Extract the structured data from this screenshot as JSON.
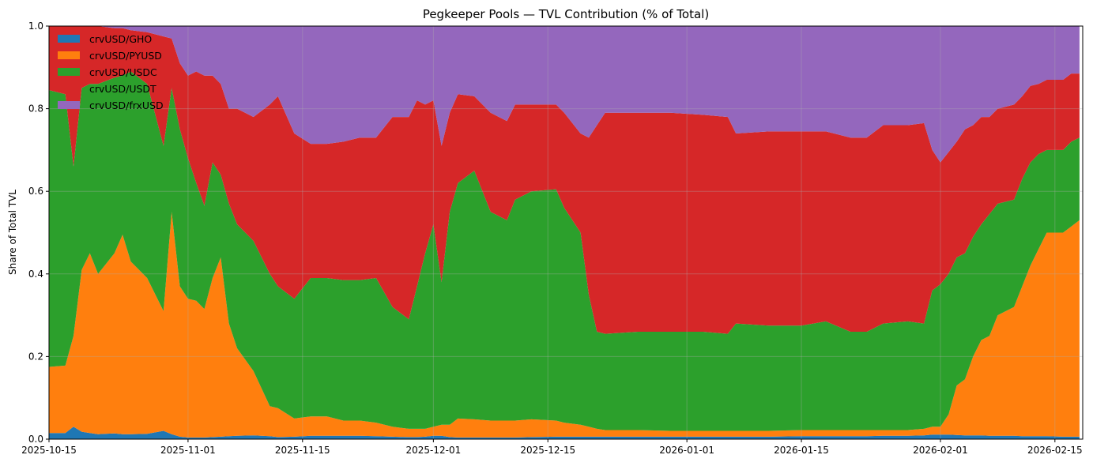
{
  "chart_data": {
    "type": "area",
    "stacked": true,
    "title": "Pegkeeper Pools — TVL Contribution (% of Total)",
    "xlabel": "",
    "ylabel": "Share of Total TVL",
    "xlim": [
      "2025-10-15",
      "2026-02-18"
    ],
    "ylim": [
      0,
      1
    ],
    "yticks": [
      "0.0",
      "0.2",
      "0.4",
      "0.6",
      "0.8",
      "1.0"
    ],
    "xticks": [
      "2025-10-15",
      "2025-11-01",
      "2025-11-15",
      "2025-12-01",
      "2025-12-15",
      "2026-01-01",
      "2026-01-15",
      "2026-02-01",
      "2026-02-15"
    ],
    "grid": true,
    "legend_position": "top-left",
    "x": [
      "2025-10-15",
      "2025-10-17",
      "2025-10-18",
      "2025-10-19",
      "2025-10-20",
      "2025-10-21",
      "2025-10-23",
      "2025-10-24",
      "2025-10-25",
      "2025-10-27",
      "2025-10-29",
      "2025-10-30",
      "2025-10-31",
      "2025-11-01",
      "2025-11-02",
      "2025-11-03",
      "2025-11-04",
      "2025-11-05",
      "2025-11-06",
      "2025-11-07",
      "2025-11-09",
      "2025-11-11",
      "2025-11-12",
      "2025-11-14",
      "2025-11-16",
      "2025-11-18",
      "2025-11-20",
      "2025-11-22",
      "2025-11-24",
      "2025-11-26",
      "2025-11-28",
      "2025-11-29",
      "2025-11-30",
      "2025-12-01",
      "2025-12-02",
      "2025-12-03",
      "2025-12-04",
      "2025-12-06",
      "2025-12-08",
      "2025-12-10",
      "2025-12-11",
      "2025-12-13",
      "2025-12-16",
      "2025-12-17",
      "2025-12-19",
      "2025-12-20",
      "2025-12-21",
      "2025-12-22",
      "2025-12-26",
      "2025-12-30",
      "2026-01-03",
      "2026-01-06",
      "2026-01-07",
      "2026-01-11",
      "2026-01-15",
      "2026-01-18",
      "2026-01-21",
      "2026-01-23",
      "2026-01-25",
      "2026-01-28",
      "2026-01-30",
      "2026-01-31",
      "2026-02-01",
      "2026-02-02",
      "2026-02-03",
      "2026-02-04",
      "2026-02-05",
      "2026-02-06",
      "2026-02-07",
      "2026-02-08",
      "2026-02-10",
      "2026-02-11",
      "2026-02-12",
      "2026-02-13",
      "2026-02-14",
      "2026-02-16",
      "2026-02-17",
      "2026-02-18"
    ],
    "series": [
      {
        "name": "crvUSD/GHO",
        "color": "#1f77b4",
        "values": [
          0.015,
          0.015,
          0.03,
          0.018,
          0.015,
          0.012,
          0.014,
          0.012,
          0.012,
          0.013,
          0.02,
          0.012,
          0.006,
          0.004,
          0.004,
          0.004,
          0.005,
          0.006,
          0.007,
          0.008,
          0.009,
          0.007,
          0.005,
          0.006,
          0.008,
          0.008,
          0.008,
          0.008,
          0.007,
          0.006,
          0.005,
          0.005,
          0.006,
          0.008,
          0.008,
          0.005,
          0.004,
          0.004,
          0.004,
          0.004,
          0.004,
          0.005,
          0.006,
          0.006,
          0.006,
          0.006,
          0.006,
          0.006,
          0.006,
          0.006,
          0.006,
          0.006,
          0.006,
          0.006,
          0.007,
          0.007,
          0.007,
          0.007,
          0.008,
          0.008,
          0.009,
          0.011,
          0.011,
          0.011,
          0.01,
          0.009,
          0.009,
          0.009,
          0.008,
          0.008,
          0.008,
          0.007,
          0.007,
          0.007,
          0.007,
          0.006,
          0.006,
          0.006
        ]
      },
      {
        "name": "crvUSD/PYUSD",
        "color": "#ff7f0e",
        "values": [
          0.16,
          0.163,
          0.22,
          0.392,
          0.435,
          0.388,
          0.436,
          0.483,
          0.418,
          0.377,
          0.29,
          0.538,
          0.364,
          0.336,
          0.331,
          0.311,
          0.385,
          0.434,
          0.273,
          0.212,
          0.156,
          0.073,
          0.07,
          0.044,
          0.047,
          0.047,
          0.037,
          0.037,
          0.033,
          0.024,
          0.02,
          0.02,
          0.019,
          0.022,
          0.027,
          0.03,
          0.046,
          0.044,
          0.041,
          0.041,
          0.041,
          0.043,
          0.039,
          0.034,
          0.029,
          0.024,
          0.019,
          0.016,
          0.016,
          0.014,
          0.014,
          0.014,
          0.014,
          0.014,
          0.015,
          0.015,
          0.015,
          0.015,
          0.014,
          0.014,
          0.016,
          0.019,
          0.019,
          0.049,
          0.12,
          0.136,
          0.191,
          0.231,
          0.242,
          0.292,
          0.312,
          0.363,
          0.413,
          0.453,
          0.493,
          0.494,
          0.509,
          0.524
        ]
      },
      {
        "name": "crvUSD/USDC",
        "color": "#2ca02c",
        "values": [
          0.67,
          0.657,
          0.41,
          0.44,
          0.41,
          0.46,
          0.425,
          0.385,
          0.46,
          0.47,
          0.4,
          0.3,
          0.38,
          0.34,
          0.285,
          0.25,
          0.28,
          0.2,
          0.29,
          0.3,
          0.315,
          0.32,
          0.295,
          0.29,
          0.335,
          0.335,
          0.34,
          0.34,
          0.35,
          0.29,
          0.265,
          0.345,
          0.425,
          0.49,
          0.345,
          0.515,
          0.57,
          0.602,
          0.505,
          0.485,
          0.535,
          0.552,
          0.56,
          0.52,
          0.465,
          0.32,
          0.235,
          0.233,
          0.238,
          0.24,
          0.24,
          0.235,
          0.26,
          0.255,
          0.253,
          0.263,
          0.238,
          0.238,
          0.258,
          0.263,
          0.255,
          0.33,
          0.345,
          0.34,
          0.31,
          0.305,
          0.29,
          0.28,
          0.295,
          0.27,
          0.26,
          0.26,
          0.25,
          0.23,
          0.2,
          0.2,
          0.205,
          0.2
        ]
      },
      {
        "name": "crvUSD/USDT",
        "color": "#d62728",
        "values": [
          0.155,
          0.165,
          0.34,
          0.15,
          0.14,
          0.14,
          0.12,
          0.115,
          0.1,
          0.125,
          0.265,
          0.12,
          0.16,
          0.2,
          0.27,
          0.315,
          0.21,
          0.22,
          0.23,
          0.28,
          0.3,
          0.41,
          0.46,
          0.4,
          0.325,
          0.325,
          0.335,
          0.345,
          0.34,
          0.46,
          0.49,
          0.45,
          0.36,
          0.3,
          0.33,
          0.24,
          0.215,
          0.18,
          0.24,
          0.24,
          0.23,
          0.21,
          0.205,
          0.23,
          0.24,
          0.38,
          0.5,
          0.535,
          0.53,
          0.53,
          0.525,
          0.525,
          0.46,
          0.47,
          0.47,
          0.46,
          0.47,
          0.47,
          0.48,
          0.475,
          0.485,
          0.34,
          0.295,
          0.295,
          0.28,
          0.3,
          0.27,
          0.26,
          0.235,
          0.23,
          0.23,
          0.2,
          0.185,
          0.17,
          0.17,
          0.17,
          0.165,
          0.155
        ]
      },
      {
        "name": "crvUSD/frxUSD",
        "color": "#9467bd",
        "values": [
          0.0,
          0.0,
          0.0,
          0.0,
          0.0,
          0.0,
          0.005,
          0.005,
          0.01,
          0.015,
          0.025,
          0.03,
          0.09,
          0.12,
          0.11,
          0.12,
          0.12,
          0.14,
          0.2,
          0.2,
          0.22,
          0.19,
          0.17,
          0.26,
          0.285,
          0.285,
          0.28,
          0.27,
          0.27,
          0.22,
          0.22,
          0.18,
          0.19,
          0.18,
          0.29,
          0.21,
          0.165,
          0.17,
          0.21,
          0.23,
          0.19,
          0.19,
          0.19,
          0.21,
          0.26,
          0.27,
          0.24,
          0.21,
          0.21,
          0.21,
          0.215,
          0.22,
          0.26,
          0.255,
          0.255,
          0.255,
          0.27,
          0.27,
          0.24,
          0.24,
          0.235,
          0.3,
          0.33,
          0.305,
          0.28,
          0.25,
          0.24,
          0.22,
          0.22,
          0.2,
          0.19,
          0.17,
          0.145,
          0.14,
          0.13,
          0.13,
          0.115,
          0.115
        ]
      }
    ]
  }
}
